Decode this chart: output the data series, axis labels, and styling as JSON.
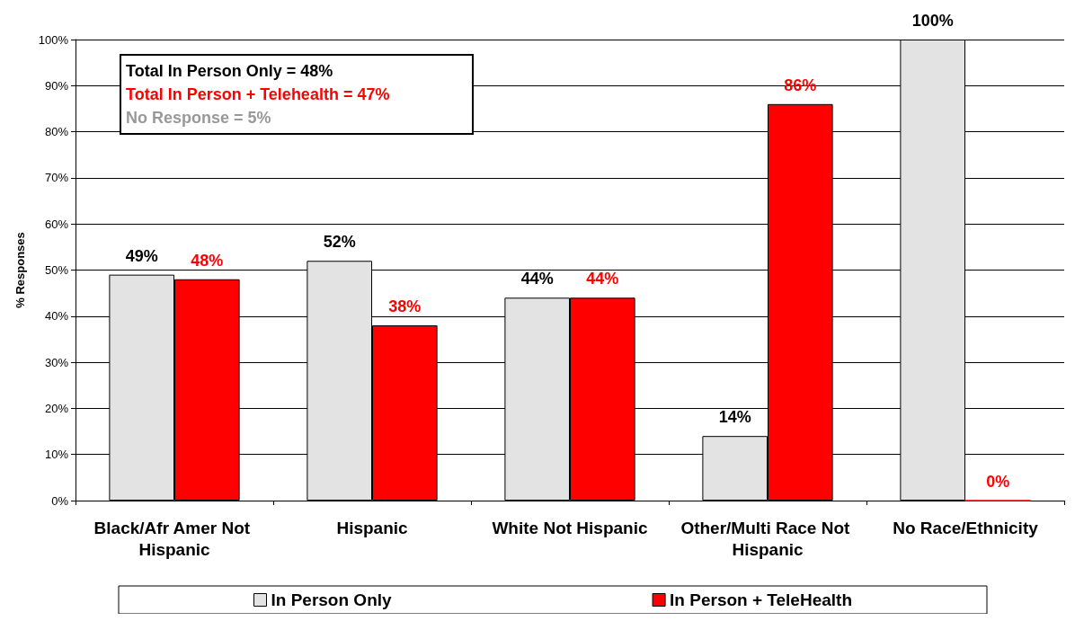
{
  "chart_data": {
    "type": "bar",
    "ylabel": "% Responses",
    "categories": [
      "Black/Afr Amer Not Hispanic",
      "Hispanic",
      "White Not Hispanic",
      "Other/Multi Race Not Hispanic",
      "No Race/Ethnicity"
    ],
    "series": [
      {
        "name": "In Person Only",
        "color": "#e3e3e3",
        "values": [
          49,
          52,
          44,
          14,
          100
        ],
        "value_labels": [
          "49%",
          "52%",
          "44%",
          "14%",
          "100%"
        ]
      },
      {
        "name": "In Person + TeleHealth",
        "color": "#ff0000",
        "values": [
          48,
          38,
          44,
          86,
          0
        ],
        "value_labels": [
          "48%",
          "38%",
          "44%",
          "86%",
          "0%"
        ]
      }
    ],
    "ylim": [
      0,
      100
    ],
    "yticks": [
      {
        "value": 0,
        "label": "0%"
      },
      {
        "value": 10,
        "label": "10%"
      },
      {
        "value": 20,
        "label": "20%"
      },
      {
        "value": 30,
        "label": "30%"
      },
      {
        "value": 40,
        "label": "40%"
      },
      {
        "value": 50,
        "label": "50%"
      },
      {
        "value": 60,
        "label": "60%"
      },
      {
        "value": 70,
        "label": "70%"
      },
      {
        "value": 80,
        "label": "80%"
      },
      {
        "value": 90,
        "label": "90%"
      },
      {
        "value": 100,
        "label": "100%"
      }
    ],
    "annotations": [
      "Total In Person Only = 48%",
      "Total In Person + Telehealth = 47%",
      "No Response = 5%"
    ],
    "grid": "y",
    "legend": "bottom"
  }
}
